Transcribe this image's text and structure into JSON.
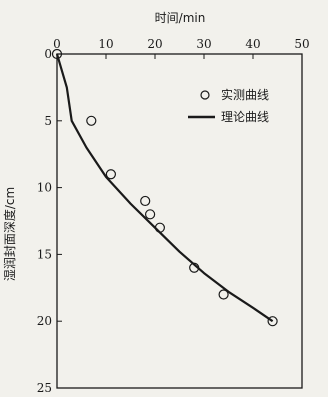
{
  "chart_data": {
    "type": "scatter",
    "xlabel": "时间/min",
    "ylabel": "湿润封面深度/cm",
    "xlim": [
      0,
      50
    ],
    "ylim": [
      0,
      25
    ],
    "x_axis_position": "top",
    "y_axis_inverted": true,
    "xticks": [
      0,
      10,
      20,
      30,
      40,
      50
    ],
    "yticks": [
      0,
      5,
      10,
      15,
      20,
      25
    ],
    "grid": false,
    "legend_position": "top-right",
    "series": [
      {
        "name": "实测曲线",
        "kind": "scatter",
        "marker": "open-circle",
        "points": [
          {
            "x": 0,
            "y": 0
          },
          {
            "x": 7,
            "y": 5
          },
          {
            "x": 11,
            "y": 9
          },
          {
            "x": 18,
            "y": 11
          },
          {
            "x": 19,
            "y": 12
          },
          {
            "x": 21,
            "y": 13
          },
          {
            "x": 28,
            "y": 16
          },
          {
            "x": 34,
            "y": 18
          },
          {
            "x": 44,
            "y": 20
          }
        ]
      },
      {
        "name": "理论曲线",
        "kind": "line",
        "points": [
          {
            "x": 0,
            "y": 0
          },
          {
            "x": 2,
            "y": 2.5
          },
          {
            "x": 3,
            "y": 5
          },
          {
            "x": 6,
            "y": 7
          },
          {
            "x": 10,
            "y": 9.2
          },
          {
            "x": 15,
            "y": 11.2
          },
          {
            "x": 20,
            "y": 13
          },
          {
            "x": 25,
            "y": 14.8
          },
          {
            "x": 30,
            "y": 16.4
          },
          {
            "x": 35,
            "y": 17.8
          },
          {
            "x": 40,
            "y": 19
          },
          {
            "x": 44,
            "y": 20
          }
        ]
      }
    ]
  }
}
